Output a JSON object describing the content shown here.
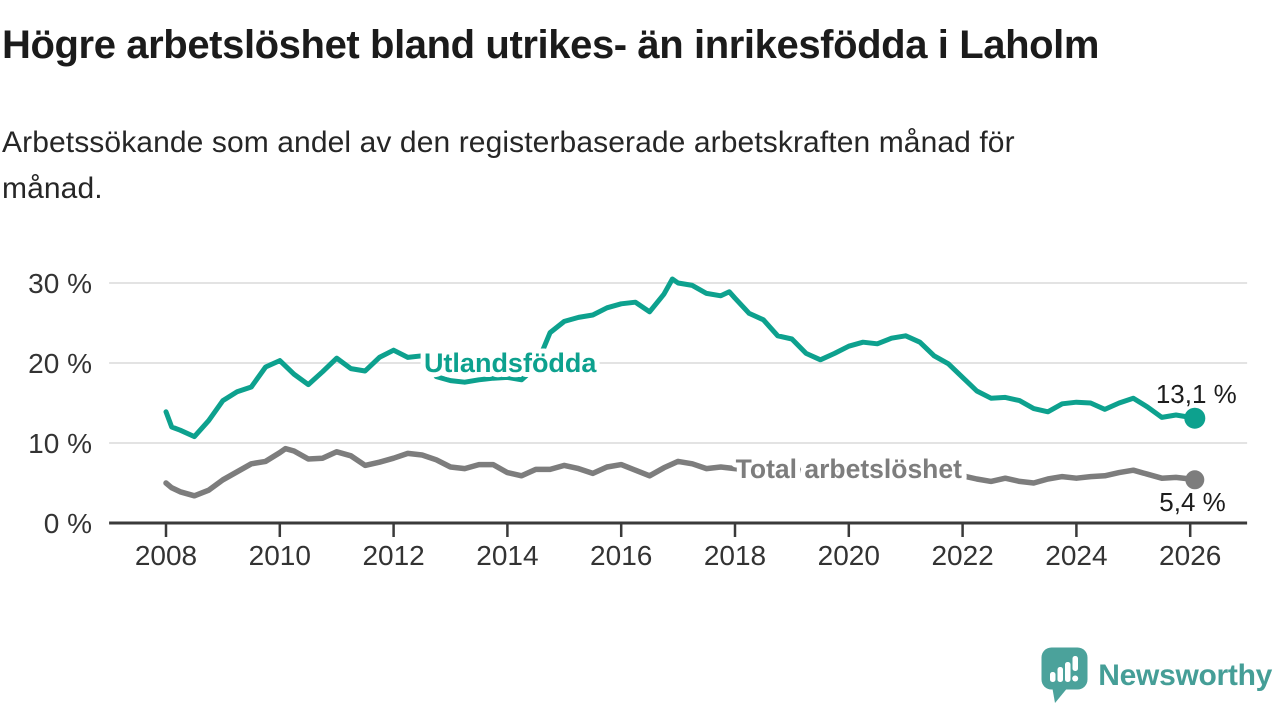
{
  "header": {
    "title": "Högre arbetslöshet bland utrikes- än inrikesfödda i Laholm",
    "subtitle_lines": [
      "Arbetssökande som andel av den registerbaserade arbetskraften månad för",
      "månad."
    ]
  },
  "branding": {
    "name": "Newsworthy",
    "logo_color": "#4BA29B",
    "text_color": "#459E97"
  },
  "chart_data": {
    "type": "line",
    "x_axis": {
      "ticks": [
        2008,
        2010,
        2012,
        2014,
        2016,
        2018,
        2020,
        2022,
        2024,
        2026
      ],
      "range": [
        2007,
        2027
      ]
    },
    "y_axis": {
      "ticks": [
        0,
        10,
        20,
        30
      ],
      "tick_suffix": " %",
      "range": [
        0,
        33
      ]
    },
    "grid": true,
    "style": {
      "grid_color": "#e3e3e3",
      "axis_color": "#3a3a3a",
      "axis_text_color": "#333333",
      "value_text_color": "#1d1d1d",
      "background": "#ffffff"
    },
    "series": [
      {
        "id": "utlandsfodda",
        "name": "Utlandsfödda",
        "color": "#0da18e",
        "end_label": "13,1 %",
        "inline_label": {
          "year": 2014.05,
          "value": 20.1
        },
        "points": [
          [
            2008,
            13.9
          ],
          [
            2008.1,
            12
          ],
          [
            2008.25,
            11.6
          ],
          [
            2008.5,
            10.8
          ],
          [
            2008.75,
            12.8
          ],
          [
            2009,
            15.3
          ],
          [
            2009.25,
            16.4
          ],
          [
            2009.5,
            17
          ],
          [
            2009.75,
            19.5
          ],
          [
            2010,
            20.3
          ],
          [
            2010.25,
            18.6
          ],
          [
            2010.5,
            17.3
          ],
          [
            2010.75,
            18.9
          ],
          [
            2011,
            20.6
          ],
          [
            2011.25,
            19.3
          ],
          [
            2011.5,
            19
          ],
          [
            2011.75,
            20.7
          ],
          [
            2012,
            21.6
          ],
          [
            2012.25,
            20.7
          ],
          [
            2012.5,
            20.9
          ],
          [
            2012.75,
            18.3
          ],
          [
            2013,
            17.8
          ],
          [
            2013.25,
            17.6
          ],
          [
            2013.5,
            17.9
          ],
          [
            2013.75,
            18.1
          ],
          [
            2014,
            18.2
          ],
          [
            2014.25,
            17.9
          ],
          [
            2014.5,
            19.5
          ],
          [
            2014.75,
            23.8
          ],
          [
            2015,
            25.2
          ],
          [
            2015.25,
            25.7
          ],
          [
            2015.5,
            26
          ],
          [
            2015.75,
            26.9
          ],
          [
            2016,
            27.4
          ],
          [
            2016.25,
            27.6
          ],
          [
            2016.5,
            26.4
          ],
          [
            2016.75,
            28.6
          ],
          [
            2016.9,
            30.5
          ],
          [
            2017,
            30
          ],
          [
            2017.25,
            29.7
          ],
          [
            2017.5,
            28.7
          ],
          [
            2017.75,
            28.4
          ],
          [
            2017.9,
            28.9
          ],
          [
            2018,
            28.1
          ],
          [
            2018.25,
            26.2
          ],
          [
            2018.5,
            25.4
          ],
          [
            2018.75,
            23.4
          ],
          [
            2019,
            23
          ],
          [
            2019.25,
            21.2
          ],
          [
            2019.5,
            20.4
          ],
          [
            2019.75,
            21.2
          ],
          [
            2020,
            22.1
          ],
          [
            2020.25,
            22.6
          ],
          [
            2020.5,
            22.4
          ],
          [
            2020.75,
            23.1
          ],
          [
            2021,
            23.4
          ],
          [
            2021.25,
            22.6
          ],
          [
            2021.5,
            20.9
          ],
          [
            2021.75,
            19.9
          ],
          [
            2022,
            18.2
          ],
          [
            2022.25,
            16.5
          ],
          [
            2022.5,
            15.6
          ],
          [
            2022.75,
            15.7
          ],
          [
            2023,
            15.3
          ],
          [
            2023.25,
            14.3
          ],
          [
            2023.5,
            13.9
          ],
          [
            2023.75,
            14.9
          ],
          [
            2024,
            15.1
          ],
          [
            2024.25,
            15
          ],
          [
            2024.5,
            14.2
          ],
          [
            2024.75,
            15
          ],
          [
            2025,
            15.6
          ],
          [
            2025.25,
            14.5
          ],
          [
            2025.5,
            13.2
          ],
          [
            2025.75,
            13.5
          ],
          [
            2026,
            13.2
          ],
          [
            2026.08,
            13.1
          ]
        ]
      },
      {
        "id": "total",
        "name": "Total arbetslöshet",
        "color": "#7d7d7d",
        "end_label": "5,4 %",
        "inline_label": {
          "year": 2020.0,
          "value": 6.9
        },
        "points": [
          [
            2008,
            5
          ],
          [
            2008.1,
            4.4
          ],
          [
            2008.25,
            3.9
          ],
          [
            2008.5,
            3.4
          ],
          [
            2008.75,
            4.1
          ],
          [
            2009,
            5.4
          ],
          [
            2009.25,
            6.4
          ],
          [
            2009.5,
            7.4
          ],
          [
            2009.75,
            7.7
          ],
          [
            2010,
            8.8
          ],
          [
            2010.1,
            9.3
          ],
          [
            2010.25,
            9
          ],
          [
            2010.5,
            8
          ],
          [
            2010.75,
            8.1
          ],
          [
            2011,
            8.9
          ],
          [
            2011.25,
            8.4
          ],
          [
            2011.5,
            7.2
          ],
          [
            2011.75,
            7.6
          ],
          [
            2012,
            8.1
          ],
          [
            2012.25,
            8.7
          ],
          [
            2012.5,
            8.5
          ],
          [
            2012.75,
            7.9
          ],
          [
            2013,
            7
          ],
          [
            2013.25,
            6.8
          ],
          [
            2013.5,
            7.3
          ],
          [
            2013.75,
            7.3
          ],
          [
            2014,
            6.3
          ],
          [
            2014.25,
            5.9
          ],
          [
            2014.5,
            6.7
          ],
          [
            2014.75,
            6.7
          ],
          [
            2015,
            7.2
          ],
          [
            2015.25,
            6.8
          ],
          [
            2015.5,
            6.2
          ],
          [
            2015.75,
            7
          ],
          [
            2016,
            7.3
          ],
          [
            2016.25,
            6.6
          ],
          [
            2016.5,
            5.9
          ],
          [
            2016.75,
            6.9
          ],
          [
            2017,
            7.7
          ],
          [
            2017.25,
            7.4
          ],
          [
            2017.5,
            6.8
          ],
          [
            2017.75,
            7
          ],
          [
            2018,
            6.8
          ],
          [
            2018.25,
            6.5
          ],
          [
            2018.5,
            6.4
          ],
          [
            2018.75,
            6.6
          ],
          [
            2019,
            6.7
          ],
          [
            2019.25,
            6.5
          ],
          [
            2019.5,
            6.3
          ],
          [
            2019.75,
            6.5
          ],
          [
            2020,
            6.9
          ],
          [
            2020.25,
            7.4
          ],
          [
            2020.5,
            7.6
          ],
          [
            2020.75,
            7.4
          ],
          [
            2021,
            7.2
          ],
          [
            2021.25,
            7
          ],
          [
            2021.5,
            6.7
          ],
          [
            2021.75,
            6.3
          ],
          [
            2022,
            5.9
          ],
          [
            2022.25,
            5.5
          ],
          [
            2022.5,
            5.2
          ],
          [
            2022.75,
            5.6
          ],
          [
            2023,
            5.2
          ],
          [
            2023.25,
            5
          ],
          [
            2023.5,
            5.5
          ],
          [
            2023.75,
            5.8
          ],
          [
            2024,
            5.6
          ],
          [
            2024.25,
            5.8
          ],
          [
            2024.5,
            5.9
          ],
          [
            2024.75,
            6.3
          ],
          [
            2025,
            6.6
          ],
          [
            2025.25,
            6.1
          ],
          [
            2025.5,
            5.6
          ],
          [
            2025.75,
            5.7
          ],
          [
            2026,
            5.5
          ],
          [
            2026.08,
            5.4
          ]
        ]
      }
    ]
  }
}
